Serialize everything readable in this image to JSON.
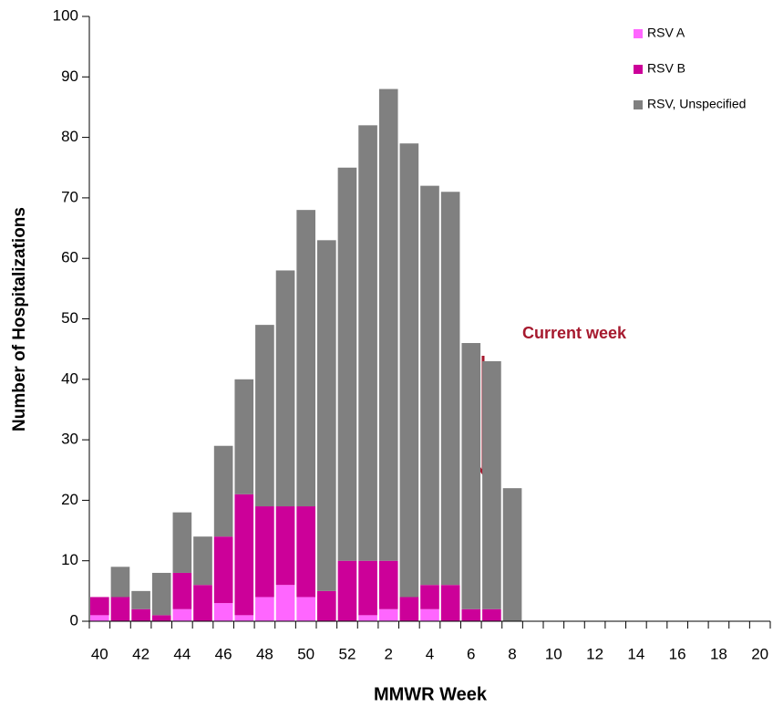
{
  "chart_data": {
    "type": "bar",
    "stacked": true,
    "x_label": "MMWR Week",
    "y_label": "Number of Hospitalizations",
    "annotation": "Current week",
    "categories": [
      40,
      null,
      42,
      null,
      44,
      null,
      46,
      null,
      48,
      null,
      50,
      null,
      52,
      null,
      2,
      null,
      4,
      null,
      6,
      null,
      8,
      null,
      10,
      null,
      12,
      null,
      14,
      null,
      16,
      null,
      18,
      null,
      20
    ],
    "series": [
      {
        "name": "RSV A",
        "color": "#ff66ff",
        "values": [
          1,
          0,
          0,
          0,
          2,
          0,
          3,
          1,
          4,
          6,
          4,
          0,
          0,
          1,
          2,
          0,
          2,
          0,
          0,
          0,
          0,
          null,
          null,
          null,
          null,
          null,
          null,
          null,
          null,
          null,
          null,
          null,
          null
        ]
      },
      {
        "name": "RSV B",
        "color": "#cc0099",
        "values": [
          3,
          4,
          2,
          1,
          6,
          6,
          11,
          20,
          15,
          13,
          15,
          5,
          10,
          9,
          8,
          4,
          4,
          6,
          2,
          2,
          0,
          null,
          null,
          null,
          null,
          null,
          null,
          null,
          null,
          null,
          null,
          null,
          null
        ]
      },
      {
        "name": "RSV, Unspecified",
        "color": "#808080",
        "values": [
          0,
          5,
          3,
          7,
          10,
          8,
          15,
          19,
          30,
          39,
          49,
          58,
          65,
          72,
          78,
          75,
          66,
          65,
          44,
          41,
          22,
          null,
          null,
          null,
          null,
          null,
          null,
          null,
          null,
          null,
          null,
          null,
          null
        ]
      }
    ],
    "ylim": [
      0,
      100
    ],
    "yticks": [
      0,
      10,
      20,
      30,
      40,
      50,
      60,
      70,
      80,
      90,
      100
    ],
    "legend": "top-right"
  }
}
